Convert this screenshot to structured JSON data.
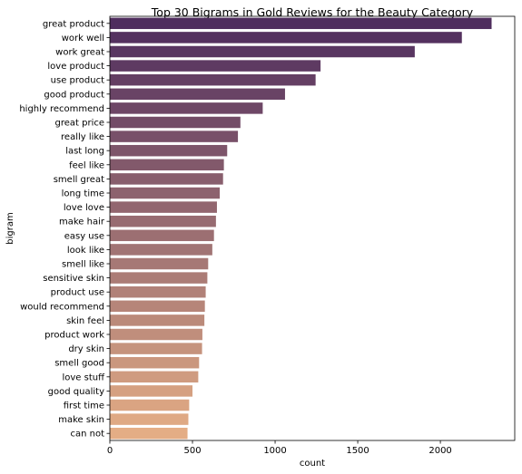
{
  "chart_data": {
    "type": "bar",
    "orientation": "horizontal",
    "title": "Top 30 Bigrams in Gold Reviews for the Beauty Category",
    "xlabel": "count",
    "ylabel": "bigram",
    "xlim": [
      0,
      2450
    ],
    "xticks": [
      0,
      500,
      1000,
      1500,
      2000
    ],
    "grid": false,
    "categories": [
      "great product",
      "work well",
      "work great",
      "love product",
      "use product",
      "good product",
      "highly recommend",
      "great price",
      "really like",
      "last long",
      "feel like",
      "smell great",
      "long time",
      "love love",
      "make hair",
      "easy use",
      "look like",
      "smell like",
      "sensitive skin",
      "product use",
      "would recommend",
      "skin feel",
      "product work",
      "dry skin",
      "smell good",
      "love stuff",
      "good quality",
      "first time",
      "make skin",
      "can not"
    ],
    "values": [
      2310,
      2130,
      1845,
      1275,
      1245,
      1060,
      925,
      790,
      775,
      710,
      690,
      685,
      665,
      648,
      642,
      630,
      620,
      595,
      590,
      580,
      575,
      572,
      560,
      558,
      540,
      535,
      500,
      480,
      475,
      470
    ],
    "palette": "flare (purple to peach)",
    "color_start": "#4f2d5e",
    "color_end": "#e4ad85"
  }
}
